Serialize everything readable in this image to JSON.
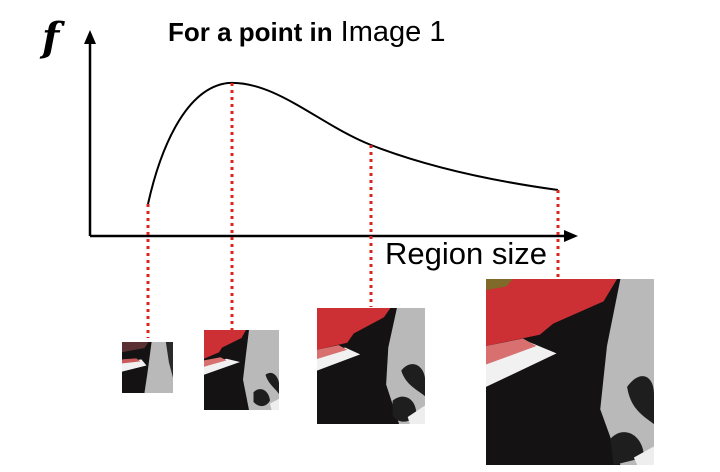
{
  "title": {
    "part1": "For a point in",
    "part2": "Image 1"
  },
  "y_axis_label": "f",
  "x_axis_label": "Region size",
  "colors": {
    "curve": "#000000",
    "guide": "#d9261c",
    "patch_red": "#cc2f34",
    "patch_black": "#141212",
    "patch_gray": "#b9b9b9",
    "patch_white": "#f1f1f1"
  }
}
